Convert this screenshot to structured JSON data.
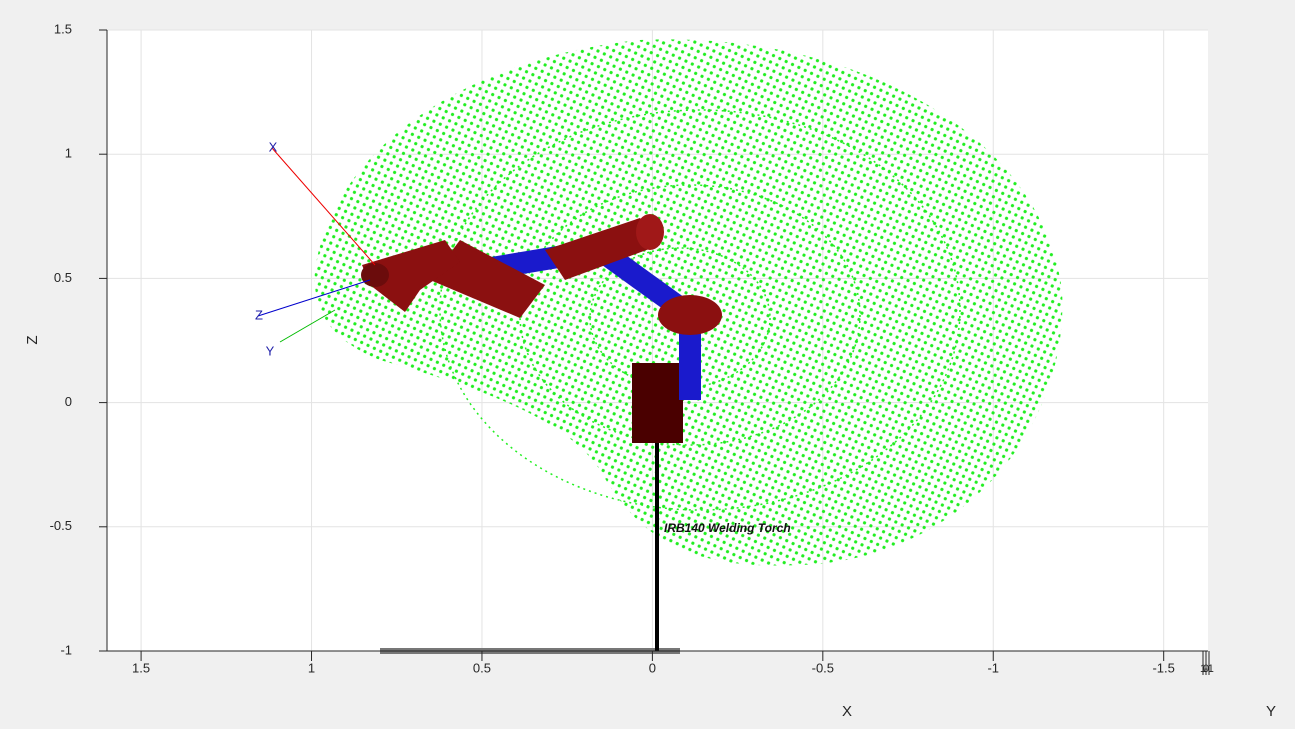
{
  "chart_data": {
    "type": "robot-workspace",
    "xlabel": "X",
    "ylabel": "Y",
    "zlabel": "Z",
    "xlim": [
      1.6,
      -1.63
    ],
    "xticks": [
      1.5,
      1,
      0.5,
      0,
      -0.5,
      -1,
      -1.5
    ],
    "zlim": [
      -1,
      1.5
    ],
    "zticks": [
      -1,
      -0.5,
      0,
      0.5,
      1,
      1.5
    ],
    "yticks": [
      1,
      0,
      -1
    ],
    "grid": true,
    "workspace_color": "#22ee22",
    "annotations": {
      "frame_x": "X",
      "frame_z": "Z",
      "frame_y": "Y",
      "robot_name": "IRB140 Welding Torch"
    }
  }
}
